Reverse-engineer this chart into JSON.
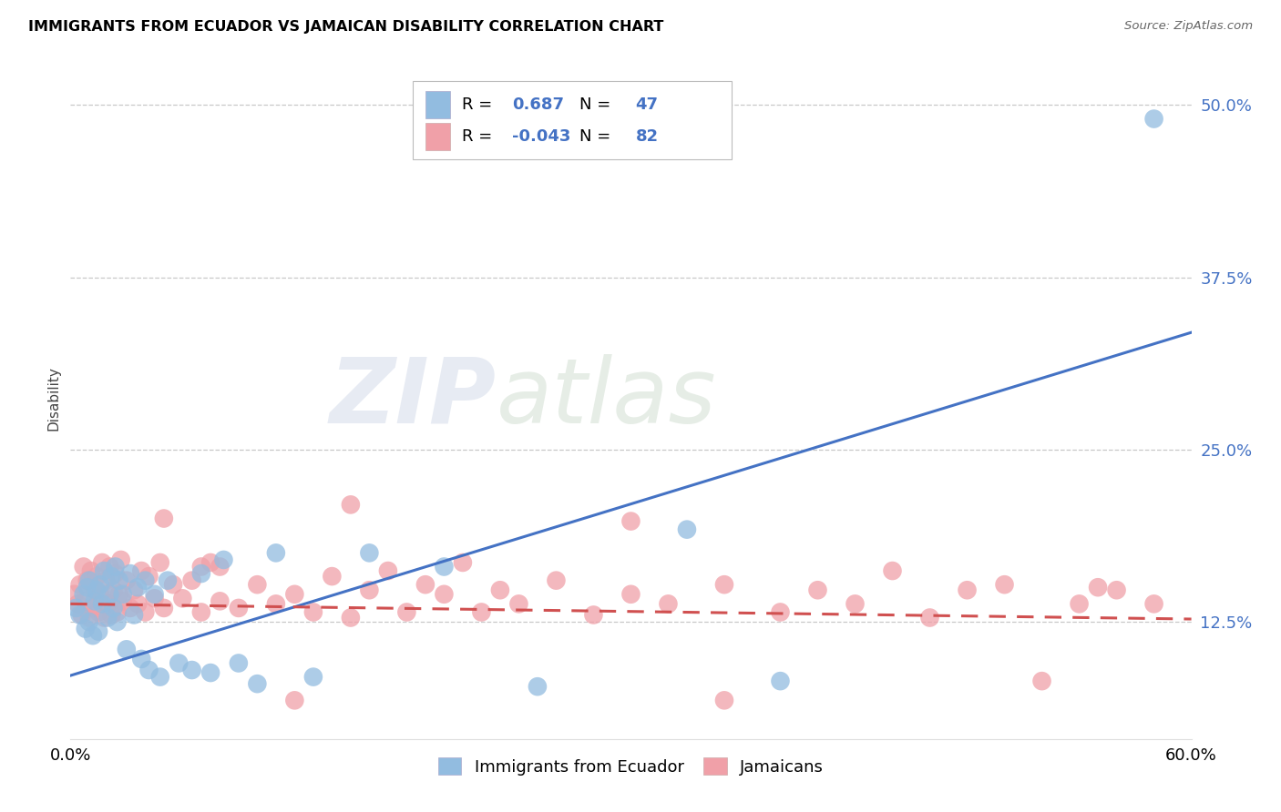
{
  "title": "IMMIGRANTS FROM ECUADOR VS JAMAICAN DISABILITY CORRELATION CHART",
  "source": "Source: ZipAtlas.com",
  "ylabel": "Disability",
  "ytick_values": [
    0.125,
    0.25,
    0.375,
    0.5
  ],
  "xmin": 0.0,
  "xmax": 0.6,
  "ymin": 0.04,
  "ymax": 0.535,
  "watermark_zip": "ZIP",
  "watermark_atlas": "atlas",
  "legend_label1": "Immigrants from Ecuador",
  "legend_label2": "Jamaicans",
  "R1": "0.687",
  "N1": "47",
  "R2": "-0.043",
  "N2": "82",
  "color_blue": "#92bce0",
  "color_pink": "#f0a0a8",
  "color_blue_line": "#4472c4",
  "color_pink_line": "#d05050",
  "background_color": "#ffffff",
  "grid_color": "#c8c8c8",
  "blue_line_start_y": 0.086,
  "blue_line_end_y": 0.335,
  "pink_line_start_y": 0.138,
  "pink_line_end_y": 0.127,
  "blue_points_x": [
    0.003,
    0.005,
    0.007,
    0.008,
    0.009,
    0.01,
    0.01,
    0.012,
    0.013,
    0.014,
    0.015,
    0.016,
    0.017,
    0.018,
    0.02,
    0.021,
    0.022,
    0.023,
    0.024,
    0.025,
    0.026,
    0.028,
    0.03,
    0.032,
    0.034,
    0.036,
    0.038,
    0.04,
    0.042,
    0.045,
    0.048,
    0.052,
    0.058,
    0.065,
    0.07,
    0.075,
    0.082,
    0.09,
    0.1,
    0.11,
    0.13,
    0.16,
    0.2,
    0.25,
    0.33,
    0.38,
    0.58
  ],
  "blue_points_y": [
    0.135,
    0.13,
    0.145,
    0.12,
    0.15,
    0.125,
    0.155,
    0.115,
    0.14,
    0.148,
    0.118,
    0.152,
    0.138,
    0.162,
    0.128,
    0.145,
    0.158,
    0.135,
    0.165,
    0.125,
    0.155,
    0.145,
    0.105,
    0.16,
    0.13,
    0.15,
    0.098,
    0.155,
    0.09,
    0.145,
    0.085,
    0.155,
    0.095,
    0.09,
    0.16,
    0.088,
    0.17,
    0.095,
    0.08,
    0.175,
    0.085,
    0.175,
    0.165,
    0.078,
    0.192,
    0.082,
    0.49
  ],
  "pink_points_x": [
    0.002,
    0.004,
    0.005,
    0.006,
    0.007,
    0.008,
    0.009,
    0.01,
    0.011,
    0.012,
    0.013,
    0.014,
    0.015,
    0.016,
    0.017,
    0.018,
    0.019,
    0.02,
    0.021,
    0.022,
    0.023,
    0.024,
    0.025,
    0.026,
    0.027,
    0.028,
    0.03,
    0.032,
    0.034,
    0.036,
    0.038,
    0.04,
    0.042,
    0.045,
    0.048,
    0.05,
    0.055,
    0.06,
    0.065,
    0.07,
    0.075,
    0.08,
    0.09,
    0.1,
    0.11,
    0.12,
    0.13,
    0.14,
    0.15,
    0.16,
    0.17,
    0.18,
    0.19,
    0.2,
    0.21,
    0.22,
    0.23,
    0.24,
    0.26,
    0.28,
    0.3,
    0.32,
    0.35,
    0.38,
    0.4,
    0.42,
    0.44,
    0.46,
    0.48,
    0.5,
    0.52,
    0.54,
    0.56,
    0.58,
    0.3,
    0.15,
    0.05,
    0.08,
    0.12,
    0.35,
    0.55,
    0.07
  ],
  "pink_points_y": [
    0.145,
    0.138,
    0.152,
    0.13,
    0.165,
    0.14,
    0.155,
    0.128,
    0.162,
    0.135,
    0.148,
    0.158,
    0.132,
    0.145,
    0.168,
    0.128,
    0.155,
    0.138,
    0.165,
    0.13,
    0.148,
    0.16,
    0.132,
    0.145,
    0.17,
    0.14,
    0.155,
    0.135,
    0.148,
    0.138,
    0.162,
    0.132,
    0.158,
    0.142,
    0.168,
    0.135,
    0.152,
    0.142,
    0.155,
    0.132,
    0.168,
    0.14,
    0.135,
    0.152,
    0.138,
    0.145,
    0.132,
    0.158,
    0.128,
    0.148,
    0.162,
    0.132,
    0.152,
    0.145,
    0.168,
    0.132,
    0.148,
    0.138,
    0.155,
    0.13,
    0.145,
    0.138,
    0.152,
    0.132,
    0.148,
    0.138,
    0.162,
    0.128,
    0.148,
    0.152,
    0.082,
    0.138,
    0.148,
    0.138,
    0.198,
    0.21,
    0.2,
    0.165,
    0.068,
    0.068,
    0.15,
    0.165
  ]
}
